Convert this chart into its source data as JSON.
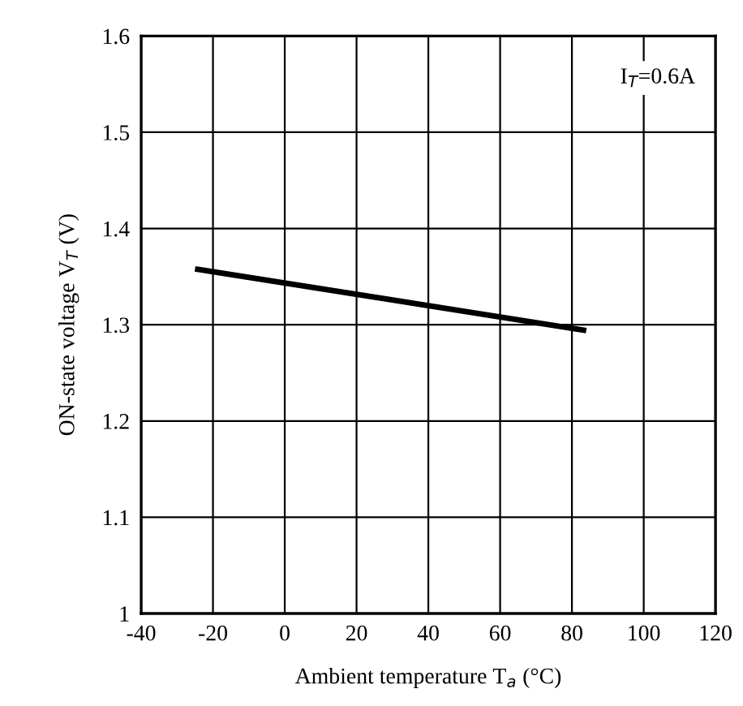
{
  "chart_data": {
    "type": "line",
    "xlabel": "Ambient temperature T$_{a}$ (°C)",
    "ylabel": "ON-state voltage V$_{T}$ (V)",
    "annotations": [
      "I$_{T}$=0.6A"
    ],
    "series": [
      {
        "color": "#000000",
        "x": [
          -25,
          84
        ],
        "values": [
          1.358,
          1.294
        ]
      }
    ],
    "xlim": [
      -40,
      120
    ],
    "xticks": [
      -40,
      -20,
      0,
      20,
      40,
      60,
      80,
      100,
      120
    ],
    "ylim": [
      1.0,
      1.6
    ],
    "yticks": [
      1,
      1.1,
      1.2,
      1.3,
      1.4,
      1.5,
      1.6
    ],
    "grid": true,
    "marker": "none",
    "line_style": "solid"
  }
}
